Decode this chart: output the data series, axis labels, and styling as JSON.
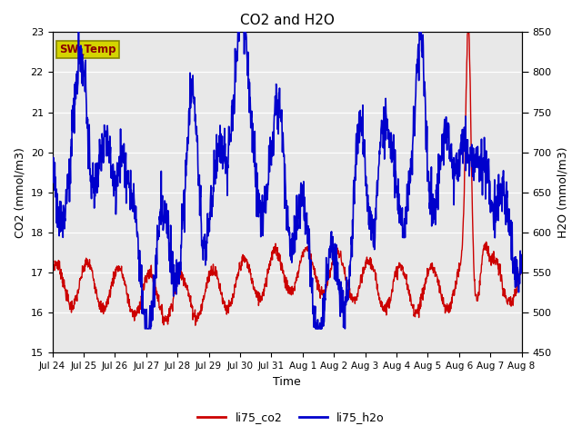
{
  "title": "CO2 and H2O",
  "xlabel": "Time",
  "ylabel_left": "CO2 (mmol/m3)",
  "ylabel_right": "H2O (mmol/m3)",
  "ylim_left": [
    15.0,
    23.0
  ],
  "ylim_right": [
    450,
    850
  ],
  "yticks_left": [
    15.0,
    16.0,
    17.0,
    18.0,
    19.0,
    20.0,
    21.0,
    22.0,
    23.0
  ],
  "yticks_right": [
    450,
    500,
    550,
    600,
    650,
    700,
    750,
    800,
    850
  ],
  "xtick_labels": [
    "Jul 24",
    "Jul 25",
    "Jul 26",
    "Jul 27",
    "Jul 28",
    "Jul 29",
    "Jul 30",
    "Jul 31",
    "Aug 1",
    "Aug 2",
    "Aug 3",
    "Aug 4",
    "Aug 5",
    "Aug 6",
    "Aug 7",
    "Aug 8"
  ],
  "sw_temp_label": "SW_Temp",
  "legend_labels": [
    "li75_co2",
    "li75_h2o"
  ],
  "co2_color": "#cc0000",
  "h2o_color": "#0000cc",
  "bg_color": "#e8e8e8",
  "sw_temp_box_facecolor": "#d4d400",
  "sw_temp_box_edgecolor": "#888800",
  "sw_temp_text_color": "#8b0000",
  "linewidth_co2": 1.0,
  "linewidth_h2o": 1.2
}
